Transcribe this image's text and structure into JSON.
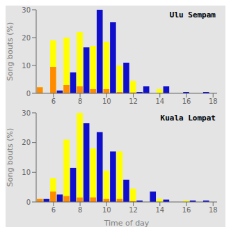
{
  "chart_data": [
    {
      "type": "bar",
      "title": "Ulu Sempam",
      "ylabel": "Song bouts (%)",
      "x": [
        5.0,
        5.5,
        6.0,
        6.5,
        7.0,
        7.5,
        8.0,
        8.5,
        9.0,
        9.5,
        10.0,
        10.5,
        11.0,
        11.5,
        12.0,
        12.5,
        13.0,
        13.5,
        14.0,
        14.5,
        15.0,
        15.5,
        16.0,
        16.5,
        17.0,
        17.5
      ],
      "xlim": [
        4.7,
        18.3
      ],
      "xticks": [
        6,
        8,
        10,
        12,
        14,
        16,
        18
      ],
      "ylim": [
        0,
        30
      ],
      "yticks": [
        0,
        10,
        20,
        30
      ],
      "grid": false,
      "stacked": false,
      "series": [
        {
          "color": "#FFFF00",
          "values": [
            2.2,
            0.0,
            19.0,
            0.0,
            20.0,
            0.0,
            22.0,
            0.0,
            17.0,
            0.0,
            18.5,
            0.0,
            10.0,
            0.0,
            4.5,
            0.0,
            0.0,
            0.0,
            1.5,
            0.0,
            0.0,
            0.0,
            0.5,
            0.0,
            0.0,
            0.0
          ]
        },
        {
          "color": "#FF8C00",
          "values": [
            2.2,
            0.0,
            9.5,
            0.0,
            3.0,
            0.0,
            2.5,
            0.0,
            1.5,
            0.0,
            1.5,
            0.0,
            0.5,
            0.0,
            0.3,
            0.0,
            0.0,
            0.0,
            0.0,
            0.0,
            0.0,
            0.0,
            0.0,
            0.0,
            0.0,
            0.0
          ]
        },
        {
          "color": "#1010CC",
          "values": [
            0.0,
            0.0,
            0.0,
            1.0,
            0.0,
            7.5,
            0.0,
            16.5,
            0.0,
            30.0,
            0.0,
            25.5,
            0.0,
            11.0,
            0.0,
            0.5,
            2.5,
            0.0,
            0.0,
            2.5,
            0.0,
            0.0,
            0.5,
            0.0,
            0.0,
            0.5
          ]
        }
      ]
    },
    {
      "type": "bar",
      "title": "Kuala Lompat",
      "xlabel": "Time of day",
      "ylabel": "Song bouts (%)",
      "x": [
        5.0,
        5.5,
        6.0,
        6.5,
        7.0,
        7.5,
        8.0,
        8.5,
        9.0,
        9.5,
        10.0,
        10.5,
        11.0,
        11.5,
        12.0,
        12.5,
        13.0,
        13.5,
        14.0,
        14.5,
        15.0,
        15.5,
        16.0,
        16.5,
        17.0,
        17.5
      ],
      "xlim": [
        4.7,
        18.3
      ],
      "xticks": [
        6,
        8,
        10,
        12,
        14,
        16,
        18
      ],
      "ylim": [
        0,
        30
      ],
      "yticks": [
        0,
        10,
        20,
        30
      ],
      "grid": false,
      "stacked": false,
      "series": [
        {
          "color": "#FFFF00",
          "values": [
            1.0,
            0.0,
            8.0,
            0.0,
            21.0,
            0.0,
            30.0,
            0.0,
            18.0,
            0.0,
            10.5,
            0.0,
            17.0,
            0.0,
            4.5,
            0.0,
            0.0,
            0.0,
            1.0,
            0.0,
            0.0,
            0.0,
            0.5,
            0.0,
            0.0,
            0.0
          ]
        },
        {
          "color": "#FF8C00",
          "values": [
            1.0,
            0.0,
            3.5,
            0.0,
            2.0,
            0.0,
            1.5,
            0.0,
            1.5,
            0.0,
            1.0,
            0.0,
            1.0,
            0.0,
            0.3,
            0.0,
            0.0,
            0.0,
            0.0,
            0.0,
            0.0,
            0.0,
            0.0,
            0.0,
            0.0,
            0.0
          ]
        },
        {
          "color": "#1010CC",
          "values": [
            0.0,
            1.0,
            0.0,
            2.5,
            0.0,
            11.5,
            0.0,
            26.5,
            0.0,
            23.5,
            0.0,
            17.0,
            0.0,
            7.5,
            0.0,
            0.5,
            0.0,
            3.5,
            0.0,
            0.8,
            0.0,
            0.0,
            0.0,
            0.5,
            0.0,
            0.5
          ]
        }
      ]
    }
  ]
}
